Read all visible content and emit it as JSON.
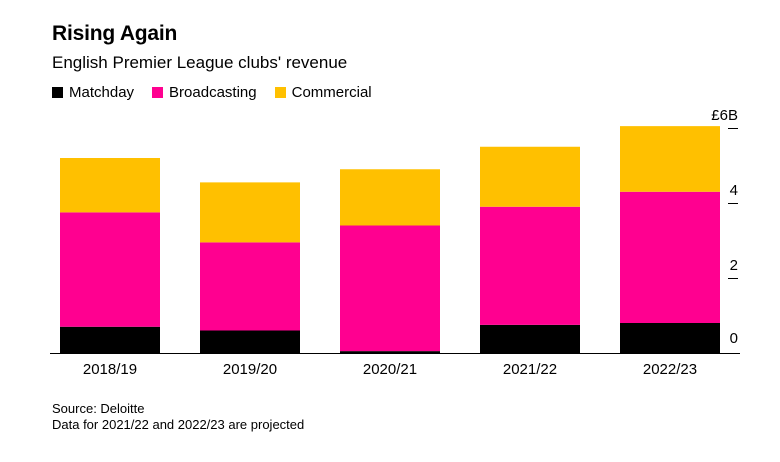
{
  "header": {
    "title": "Rising Again",
    "subtitle": "English Premier League clubs' revenue"
  },
  "colors": {
    "matchday": "#000000",
    "broadcasting": "#ff0090",
    "commercial": "#ffc000"
  },
  "chart_data": {
    "type": "bar",
    "stacked": true,
    "title": "Rising Again",
    "subtitle": "English Premier League clubs' revenue",
    "categories": [
      "2018/19",
      "2019/20",
      "2020/21",
      "2021/22",
      "2022/23"
    ],
    "series": [
      {
        "name": "Matchday",
        "color": "#000000",
        "values": [
          0.7,
          0.6,
          0.05,
          0.75,
          0.8
        ]
      },
      {
        "name": "Broadcasting",
        "color": "#ff0090",
        "values": [
          3.05,
          2.35,
          3.35,
          3.15,
          3.5
        ]
      },
      {
        "name": "Commercial",
        "color": "#ffc000",
        "values": [
          1.45,
          1.6,
          1.5,
          1.6,
          1.75
        ]
      }
    ],
    "y_ticks": [
      {
        "value": 0,
        "label": "0"
      },
      {
        "value": 2,
        "label": "2"
      },
      {
        "value": 4,
        "label": "4"
      },
      {
        "value": 6,
        "label": "£6B"
      }
    ],
    "ylim": [
      0,
      6
    ],
    "y_axis_side": "right",
    "legend_position": "top-left",
    "grid": false
  },
  "footer": {
    "source": "Source: Deloitte",
    "note": "Data for 2021/22 and 2022/23 are projected"
  }
}
